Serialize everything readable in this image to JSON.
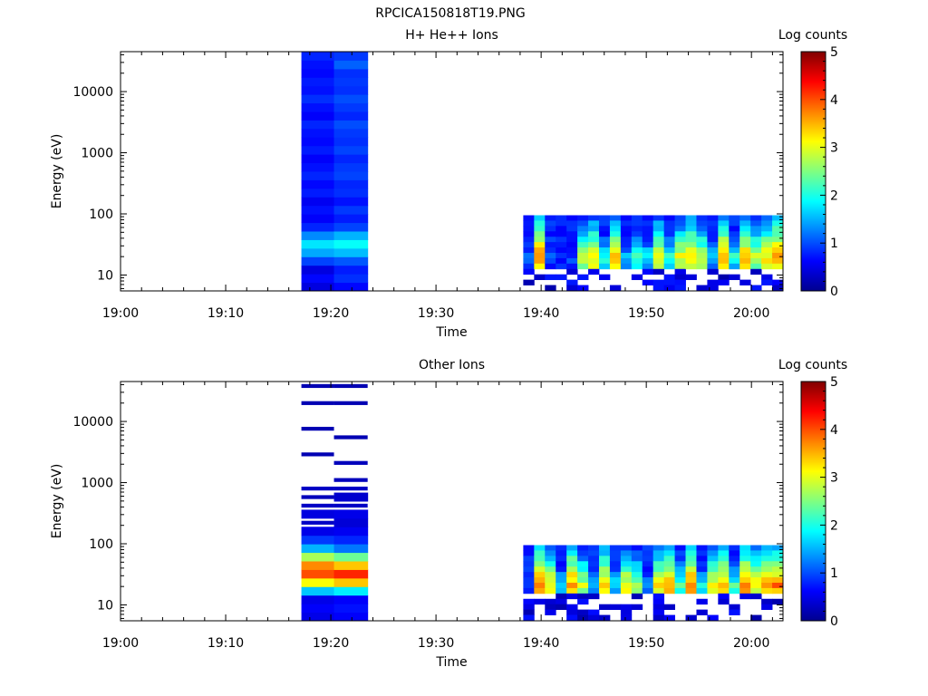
{
  "figure_title": "RPCICA150818T19.PNG",
  "colors": {
    "axis": "#000000",
    "background": "#ffffff"
  },
  "colorbar": {
    "label": "Log counts",
    "range": [
      0,
      5
    ],
    "ticks": [
      "0",
      "1",
      "2",
      "3",
      "4",
      "5"
    ],
    "colormap": [
      "#00008f",
      "#0000ff",
      "#0080ff",
      "#00ffff",
      "#80ff80",
      "#ffff00",
      "#ff8000",
      "#ff0000",
      "#800000"
    ]
  },
  "chart_data": [
    {
      "type": "heatmap",
      "title": "H+ He++ Ions",
      "xlabel": "Time",
      "ylabel": "Energy (eV)",
      "xlim": [
        "19:00",
        "20:03"
      ],
      "ylim": [
        5.5,
        45000
      ],
      "yscale": "log",
      "xticks": [
        "19:00",
        "19:10",
        "19:20",
        "19:30",
        "19:40",
        "19:50",
        "20:00"
      ],
      "yticks": [
        "10",
        "100",
        "1000",
        "10000"
      ],
      "clim": [
        0,
        5
      ],
      "blocks": [
        {
          "t0": "19:17.2",
          "t1": "19:20.3",
          "levels": [
            0.45,
            0.65,
            0.45,
            0.95,
            1.45,
            1.75,
            1.3,
            0.8,
            0.6,
            0.7,
            0.55,
            0.75,
            0.65,
            0.8,
            0.7,
            0.6,
            0.75,
            0.65,
            0.7,
            0.8,
            0.6,
            0.7,
            0.85,
            0.7,
            0.75,
            0.65,
            0.7,
            0.8
          ]
        },
        {
          "t0": "19:20.3",
          "t1": "19:23.5",
          "levels": [
            0.65,
            0.85,
            0.75,
            1.05,
            1.55,
            1.9,
            1.5,
            0.95,
            0.75,
            0.9,
            0.7,
            0.85,
            0.8,
            0.95,
            0.9,
            0.8,
            0.95,
            0.85,
            0.9,
            1.0,
            0.8,
            0.9,
            1.0,
            0.85,
            0.9,
            0.85,
            1.1,
            0.9
          ]
        }
      ],
      "burst": {
        "t0": "19:38.3",
        "t1": "20:03",
        "columns": 24,
        "core_levels": [
          1.2,
          3.8,
          1.3,
          0.7,
          1.1,
          2.9,
          3.3,
          2.1,
          3.4,
          1.6,
          2.3,
          1.9,
          3.3,
          2.1,
          3.1,
          3.5,
          2.9,
          1.8,
          3.7,
          2.1,
          3.5,
          2.9,
          3.3,
          3.7
        ],
        "core_range_eV": [
          12,
          95
        ]
      }
    },
    {
      "type": "heatmap",
      "title": "Other Ions",
      "xlabel": "Time",
      "ylabel": "Energy (eV)",
      "xlim": [
        "19:00",
        "20:03"
      ],
      "ylim": [
        5.5,
        45000
      ],
      "yscale": "log",
      "xticks": [
        "19:00",
        "19:10",
        "19:20",
        "19:30",
        "19:40",
        "19:50",
        "20:00"
      ],
      "yticks": [
        "10",
        "100",
        "1000",
        "10000"
      ],
      "clim": [
        0,
        5
      ],
      "blocks": [
        {
          "t0": "19:17.2",
          "t1": "19:20.3",
          "levels": [
            0.5,
            0.6,
            0.5,
            1.6,
            3.1,
            4.0,
            3.7,
            2.7,
            1.5,
            0.9,
            0.5,
            0.3,
            0.45,
            0.3,
            0.25,
            0.3,
            0.0,
            0.0,
            0.0,
            0.2,
            0.0,
            0.0,
            0.2,
            0.0,
            0.0,
            0.2,
            0.0,
            0.2
          ]
        },
        {
          "t0": "19:20.3",
          "t1": "19:23.5",
          "levels": [
            0.6,
            0.7,
            0.6,
            1.8,
            3.4,
            4.2,
            3.4,
            2.4,
            1.2,
            0.8,
            0.55,
            0.4,
            0.5,
            0.3,
            0.35,
            0.3,
            0.25,
            0.0,
            0.25,
            0.0,
            0.0,
            0.2,
            0.0,
            0.0,
            0.0,
            0.2,
            0.0,
            0.2
          ]
        }
      ],
      "burst": {
        "t0": "19:38.3",
        "t1": "20:03",
        "columns": 24,
        "core_levels": [
          1.0,
          3.9,
          3.2,
          1.8,
          3.7,
          2.9,
          1.6,
          3.5,
          1.9,
          3.2,
          2.8,
          1.5,
          3.3,
          3.6,
          2.4,
          3.8,
          1.9,
          3.1,
          3.5,
          2.2,
          3.7,
          3.3,
          3.6,
          3.8
        ],
        "core_range_eV": [
          14,
          95
        ]
      }
    }
  ]
}
